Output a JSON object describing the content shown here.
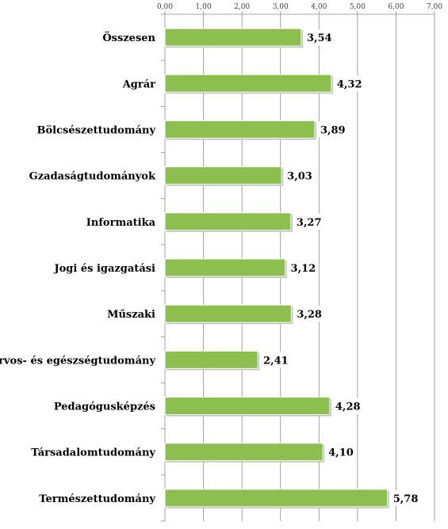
{
  "chart_data": {
    "type": "bar",
    "orientation": "horizontal",
    "title": "",
    "xlabel": "",
    "ylabel": "",
    "categories": [
      "Összesen",
      "Agrár",
      "Bölcsészettudomány",
      "Gzadaságtudományok",
      "Informatika",
      "Jogi és igazgatási",
      "Műszaki",
      "Orvos- és egészségtudomány",
      "Pedagógusképzés",
      "Társadalomtudomány",
      "Természettudomány"
    ],
    "values": [
      3.54,
      4.32,
      3.89,
      3.03,
      3.27,
      3.12,
      3.28,
      2.41,
      4.28,
      4.1,
      5.78
    ],
    "value_labels": [
      "3,54",
      "4,32",
      "3,89",
      "3,03",
      "3,27",
      "3,12",
      "3,28",
      "2,41",
      "4,28",
      "4,10",
      "5,78"
    ],
    "xlim": [
      0,
      7
    ],
    "ticks": [
      0,
      1,
      2,
      3,
      4,
      5,
      6,
      7
    ],
    "tick_labels": [
      "0,00",
      "1,00",
      "2,00",
      "3,00",
      "4,00",
      "5,00",
      "6,00",
      "7,00"
    ],
    "axis_position": "top",
    "grid": true,
    "legend": "none",
    "colors": {
      "bar_fill": "#8DBF4E",
      "bar_edge": "#ffffff",
      "grid": "#8c8c8c",
      "axis": "#8c8c8c",
      "label_box": "#ffffff"
    }
  }
}
